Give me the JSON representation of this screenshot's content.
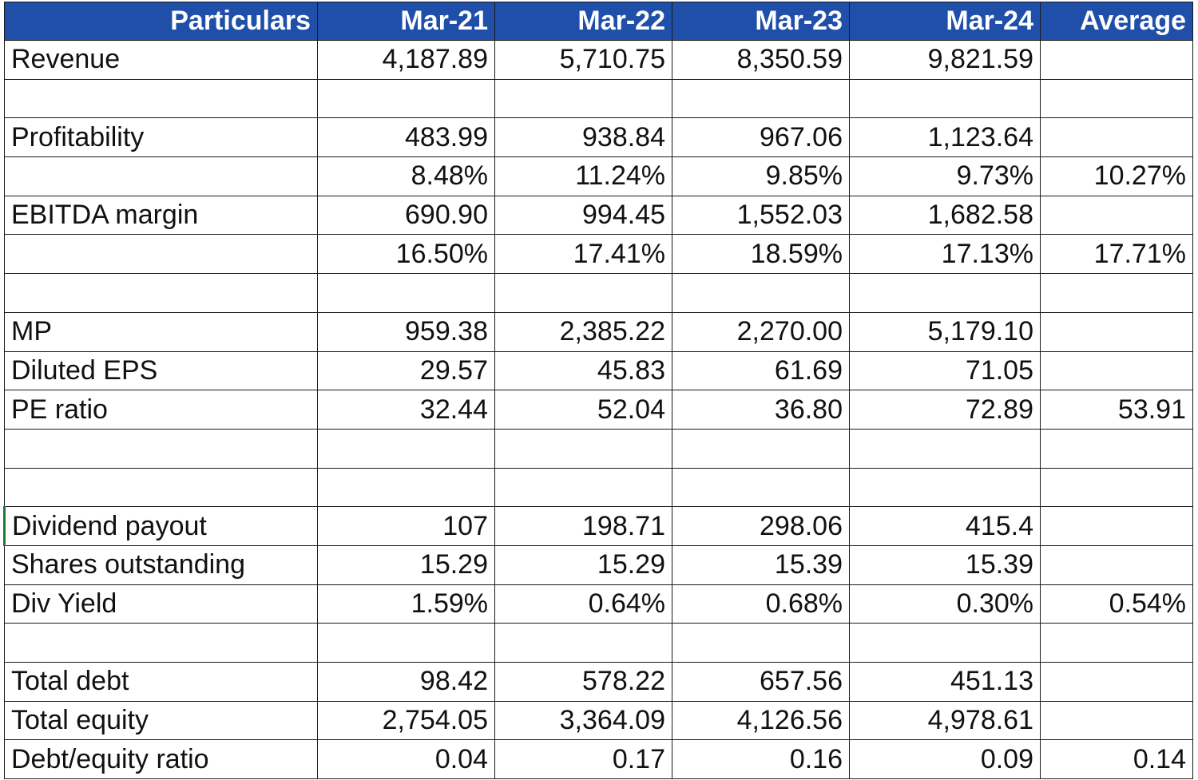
{
  "highlight_color": "#e8121d",
  "header_color": "#1f4fa8",
  "header": [
    "Particulars",
    "Mar-21",
    "Mar-22",
    "Mar-23",
    "Mar-24",
    "Average"
  ],
  "rows": [
    {
      "label": "Revenue",
      "values": [
        "4,187.89",
        "5,710.75",
        "8,350.59",
        "9,821.59",
        ""
      ],
      "red": []
    },
    {
      "label": "",
      "values": [
        "",
        "",
        "",
        "",
        ""
      ],
      "red": []
    },
    {
      "label": "Profitability",
      "values": [
        "483.99",
        "938.84",
        "967.06",
        "1,123.64",
        ""
      ],
      "red": []
    },
    {
      "label": "",
      "values": [
        "8.48%",
        "11.24%",
        "9.85%",
        "9.73%",
        "10.27%"
      ],
      "red": [
        2
      ]
    },
    {
      "label": "EBITDA margin",
      "values": [
        "690.90",
        "994.45",
        "1,552.03",
        "1,682.58",
        ""
      ],
      "red": []
    },
    {
      "label": "",
      "values": [
        "16.50%",
        "17.41%",
        "18.59%",
        "17.13%",
        "17.71%"
      ],
      "red": [
        2
      ]
    },
    {
      "label": "",
      "values": [
        "",
        "",
        "",
        "",
        ""
      ],
      "red": []
    },
    {
      "label": "MP",
      "values": [
        "959.38",
        "2,385.22",
        "2,270.00",
        "5,179.10",
        ""
      ],
      "red": []
    },
    {
      "label": "Diluted EPS",
      "values": [
        "29.57",
        "45.83",
        "61.69",
        "71.05",
        ""
      ],
      "red": []
    },
    {
      "label": "PE ratio",
      "values": [
        "32.44",
        "52.04",
        "36.80",
        "72.89",
        "53.91"
      ],
      "red": [
        1
      ]
    },
    {
      "label": "",
      "values": [
        "",
        "",
        "",
        "",
        ""
      ],
      "red": []
    },
    {
      "label": "",
      "values": [
        "",
        "",
        "",
        "",
        ""
      ],
      "red": []
    },
    {
      "label": "Dividend payout",
      "values": [
        "107",
        "198.71",
        "298.06",
        "415.4",
        ""
      ],
      "red": []
    },
    {
      "label": "Shares outstanding",
      "values": [
        "15.29",
        "15.29",
        "15.39",
        "15.39",
        ""
      ],
      "red": []
    },
    {
      "label": "Div Yield",
      "values": [
        "1.59%",
        "0.64%",
        "0.68%",
        "0.30%",
        "0.54%"
      ],
      "red": [
        2
      ]
    },
    {
      "label": "",
      "values": [
        "",
        "",
        "",
        "",
        ""
      ],
      "red": []
    },
    {
      "label": "Total debt",
      "values": [
        "98.42",
        "578.22",
        "657.56",
        "451.13",
        ""
      ],
      "red": []
    },
    {
      "label": "Total equity",
      "values": [
        "2,754.05",
        "3,364.09",
        "4,126.56",
        "4,978.61",
        ""
      ],
      "red": []
    },
    {
      "label": "Debt/equity ratio",
      "values": [
        "0.04",
        "0.17",
        "0.16",
        "0.09",
        "0.14"
      ],
      "red": [
        0
      ]
    }
  ]
}
